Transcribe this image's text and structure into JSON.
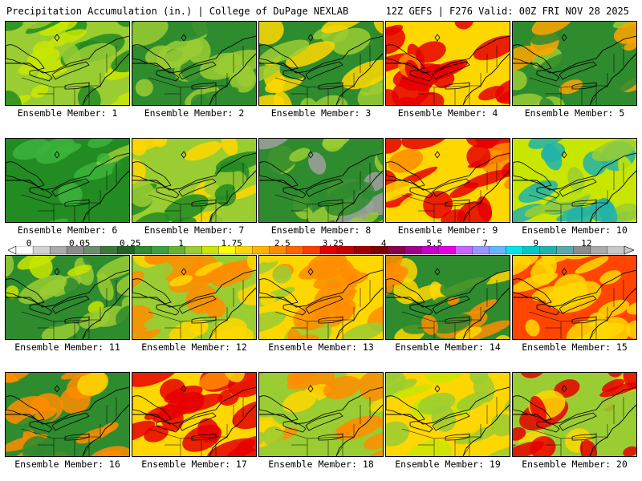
{
  "header": {
    "title": "Precipitation Accumulation (in.) | College of DuPage NEXLAB",
    "run_info": "12Z GEFS | F276 Valid: 00Z FRI NOV 28 2025"
  },
  "members": [
    {
      "label": "Ensemble Member: 1",
      "palette": [
        "#9acd32",
        "#c8e600",
        "#228b22"
      ],
      "wet": 0.3
    },
    {
      "label": "Ensemble Member: 2",
      "palette": [
        "#2e8b2e",
        "#9acd32",
        "#b4b4b4"
      ],
      "wet": 0.1
    },
    {
      "label": "Ensemble Member: 3",
      "palette": [
        "#2e8b2e",
        "#9acd32",
        "#ffd700"
      ],
      "wet": 0.25
    },
    {
      "label": "Ensemble Member: 4",
      "palette": [
        "#ffd700",
        "#ff8c00",
        "#e60000"
      ],
      "wet": 0.8
    },
    {
      "label": "Ensemble Member: 5",
      "palette": [
        "#2e8b2e",
        "#9acd32",
        "#ffa500"
      ],
      "wet": 0.35
    },
    {
      "label": "Ensemble Member: 6",
      "palette": [
        "#228b22",
        "#3cb43c",
        "#9acd32"
      ],
      "wet": 0.1
    },
    {
      "label": "Ensemble Member: 7",
      "palette": [
        "#9acd32",
        "#228b22",
        "#ffd700"
      ],
      "wet": 0.3
    },
    {
      "label": "Ensemble Member: 8",
      "palette": [
        "#2e8b2e",
        "#9acd32",
        "#a0a0a0"
      ],
      "wet": 0.15
    },
    {
      "label": "Ensemble Member: 9",
      "palette": [
        "#ffd700",
        "#ff8c00",
        "#e60000"
      ],
      "wet": 0.75
    },
    {
      "label": "Ensemble Member: 10",
      "palette": [
        "#c8e600",
        "#9acd32",
        "#20b2aa"
      ],
      "wet": 0.35
    },
    {
      "label": "Ensemble Member: 11",
      "palette": [
        "#2e8b2e",
        "#9acd32",
        "#c8e600"
      ],
      "wet": 0.15
    },
    {
      "label": "Ensemble Member: 12",
      "palette": [
        "#9acd32",
        "#ffd700",
        "#ff8c00"
      ],
      "wet": 0.5
    },
    {
      "label": "Ensemble Member: 13",
      "palette": [
        "#ffd700",
        "#9acd32",
        "#ff8c00"
      ],
      "wet": 0.55
    },
    {
      "label": "Ensemble Member: 14",
      "palette": [
        "#2e8b2e",
        "#ffd700",
        "#ff8c00"
      ],
      "wet": 0.45
    },
    {
      "label": "Ensemble Member: 15",
      "palette": [
        "#ff4500",
        "#e60000",
        "#ffd700"
      ],
      "wet": 0.95
    },
    {
      "label": "Ensemble Member: 16",
      "palette": [
        "#2e8b2e",
        "#ffd700",
        "#ff8c00"
      ],
      "wet": 0.5
    },
    {
      "label": "Ensemble Member: 17",
      "palette": [
        "#ffd700",
        "#ff8c00",
        "#e60000"
      ],
      "wet": 0.8
    },
    {
      "label": "Ensemble Member: 18",
      "palette": [
        "#9acd32",
        "#ffd700",
        "#ff8c00"
      ],
      "wet": 0.5
    },
    {
      "label": "Ensemble Member: 19",
      "palette": [
        "#ffd700",
        "#c8e600",
        "#9acd32"
      ],
      "wet": 0.5
    },
    {
      "label": "Ensemble Member: 20",
      "palette": [
        "#9acd32",
        "#ffd700",
        "#e60000"
      ],
      "wet": 0.55
    }
  ],
  "colorbar": {
    "labels": [
      "0",
      "0.05",
      "0.25",
      "1",
      "1.75",
      "2.5",
      "3.25",
      "4",
      "5.5",
      "7",
      "9",
      "12"
    ],
    "colors": [
      "#ffffff",
      "#d2d2d2",
      "#aaaaaa",
      "#8c8c8c",
      "#6e8c6e",
      "#3c783c",
      "#226422",
      "#2e8b2e",
      "#3ca03c",
      "#64b432",
      "#9acd32",
      "#c8e600",
      "#ffff00",
      "#ffd700",
      "#ffb400",
      "#ff8c00",
      "#ff6400",
      "#ff3c00",
      "#e60000",
      "#c80000",
      "#a00000",
      "#800000",
      "#8b0046",
      "#a0008c",
      "#c800c8",
      "#e600e6",
      "#c864ff",
      "#9696ff",
      "#64b4ff",
      "#00e6e6",
      "#00c8c8",
      "#20b2aa",
      "#5aaaaa",
      "#8c8c8c",
      "#aaaaaa",
      "#c8c8c8"
    ]
  }
}
